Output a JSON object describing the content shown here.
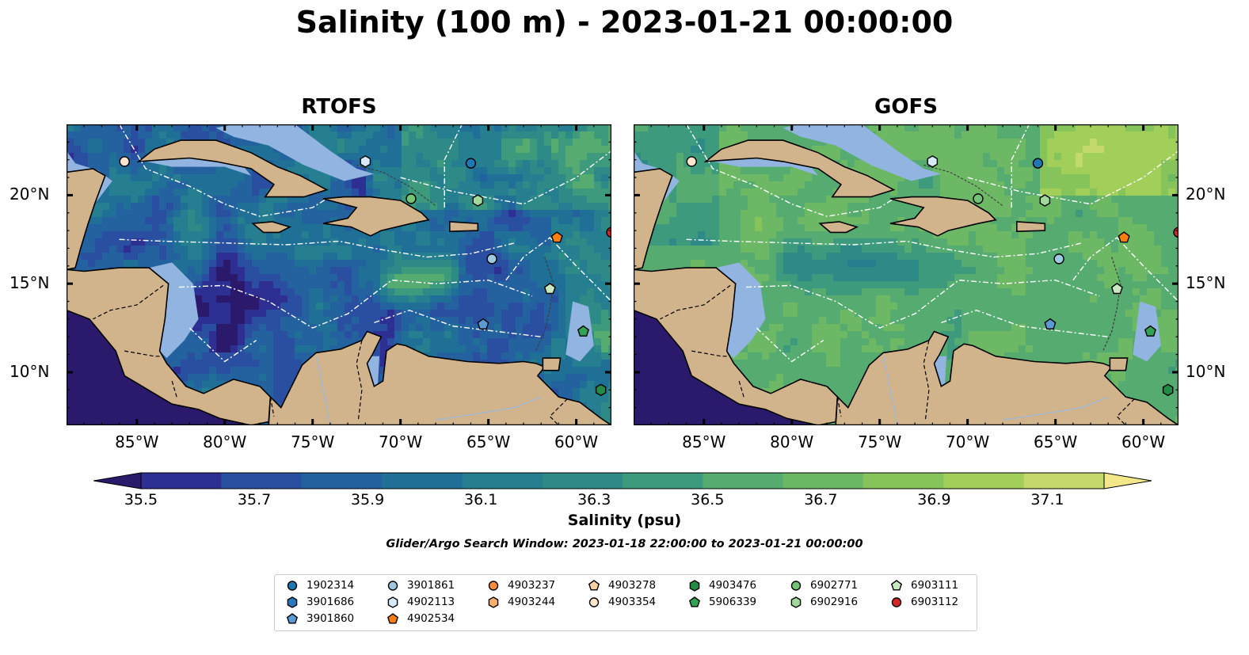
{
  "title": "Salinity (100 m) - 2023-01-21 00:00:00",
  "panels": [
    {
      "title": "RTOFS",
      "field": "rtofs"
    },
    {
      "title": "GOFS",
      "field": "gofs"
    }
  ],
  "axes": {
    "x_ticks": [
      "85°W",
      "80°W",
      "75°W",
      "70°W",
      "65°W",
      "60°W"
    ],
    "x_values": [
      -85,
      -80,
      -75,
      -70,
      -65,
      -60
    ],
    "y_ticks": [
      "20°N",
      "15°N",
      "10°N"
    ],
    "y_values": [
      20,
      15,
      10
    ],
    "lon_range": [
      -89,
      -58
    ],
    "lat_range": [
      7,
      24
    ]
  },
  "colorbar": {
    "label": "Salinity (psu)",
    "ticks": [
      "35.5",
      "35.7",
      "35.9",
      "36.1",
      "36.3",
      "36.5",
      "36.7",
      "36.9",
      "37.1"
    ],
    "tick_values": [
      35.5,
      35.7,
      35.9,
      36.1,
      36.3,
      36.5,
      36.7,
      36.9,
      37.1
    ],
    "range": [
      35.5,
      37.2
    ],
    "extend": "both",
    "colors": [
      "#2b1a6b",
      "#2d2f93",
      "#2a4fa0",
      "#24619f",
      "#1f6f96",
      "#257f90",
      "#2e8a86",
      "#3d9a7d",
      "#56ab70",
      "#6cb865",
      "#86c35a",
      "#a2ce5a",
      "#c3d96b",
      "#f2e88a"
    ]
  },
  "search_window": "Glider/Argo Search Window: 2023-01-18 22:00:00 to 2023-01-21 00:00:00",
  "legend": [
    {
      "id": "1902314",
      "marker": "circle",
      "color": "#1f77b4",
      "lon": -66.0,
      "lat": 21.8
    },
    {
      "id": "3901686",
      "marker": "hexagon",
      "color": "#2879c0",
      "lon": null,
      "lat": null
    },
    {
      "id": "3901860",
      "marker": "pentagon",
      "color": "#5b9bd5",
      "lon": -65.3,
      "lat": 12.7
    },
    {
      "id": "3901861",
      "marker": "circle",
      "color": "#9ecae1",
      "lon": -64.8,
      "lat": 16.4
    },
    {
      "id": "4902113",
      "marker": "hexagon",
      "color": "#d6eaf8",
      "lon": -72.0,
      "lat": 21.9
    },
    {
      "id": "4902534",
      "marker": "pentagon",
      "color": "#ff7f0e",
      "lon": -61.1,
      "lat": 17.6
    },
    {
      "id": "4903237",
      "marker": "circle",
      "color": "#fd8d3c",
      "lon": null,
      "lat": null
    },
    {
      "id": "4903244",
      "marker": "hexagon",
      "color": "#fdae6b",
      "lon": null,
      "lat": null
    },
    {
      "id": "4903278",
      "marker": "pentagon",
      "color": "#fdd0a2",
      "lon": null,
      "lat": null
    },
    {
      "id": "4903354",
      "marker": "circle",
      "color": "#fee6ce",
      "lon": -85.7,
      "lat": 21.9
    },
    {
      "id": "4903476",
      "marker": "hexagon",
      "color": "#238b45",
      "lon": -58.6,
      "lat": 9.0
    },
    {
      "id": "5906339",
      "marker": "pentagon",
      "color": "#31a354",
      "lon": -59.6,
      "lat": 12.3
    },
    {
      "id": "6902771",
      "marker": "circle",
      "color": "#74c476",
      "lon": -69.4,
      "lat": 19.8
    },
    {
      "id": "6902916",
      "marker": "hexagon",
      "color": "#a1d99b",
      "lon": -65.6,
      "lat": 19.7
    },
    {
      "id": "6903111",
      "marker": "pentagon",
      "color": "#c7e9c0",
      "lon": -61.5,
      "lat": 14.7
    },
    {
      "id": "6903112",
      "marker": "circle",
      "color": "#d62728",
      "lon": -58.0,
      "lat": 17.9
    }
  ],
  "colors": {
    "land": "#d2b48c",
    "shallow": "#92b4e0",
    "pacific": "#2b1a6b",
    "eez": "#ffffff"
  }
}
